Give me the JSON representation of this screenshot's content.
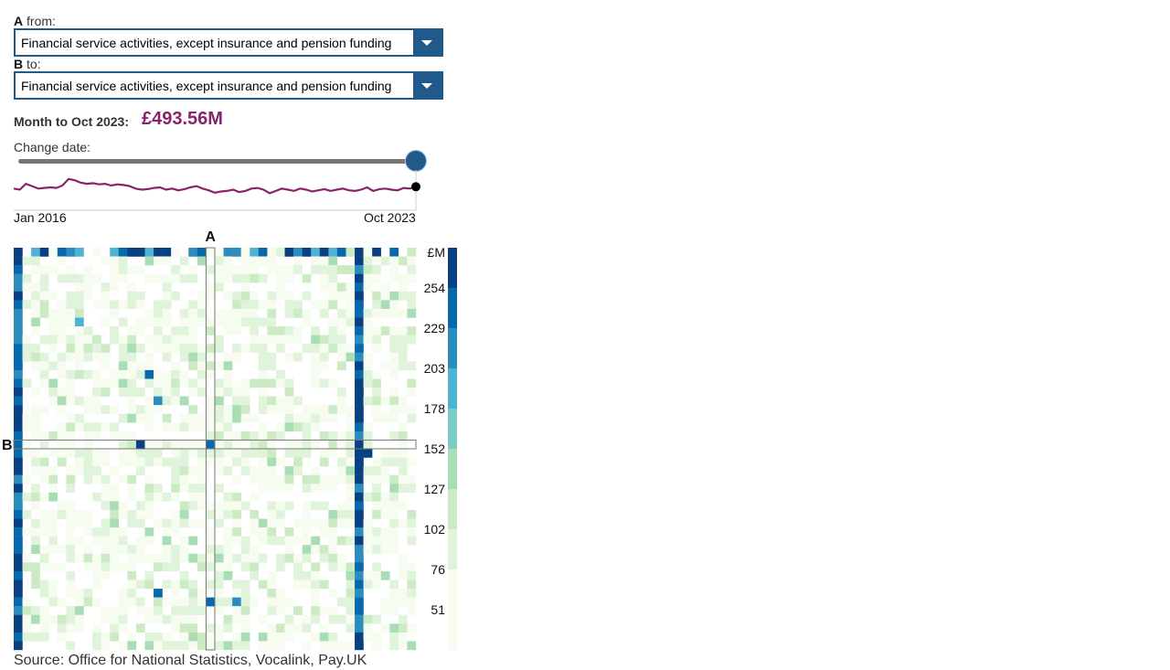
{
  "controls": {
    "a_prefix": "A",
    "a_suffix": "from:",
    "a_value": "Financial service activities, except insurance and pension funding",
    "b_prefix": "B",
    "b_suffix": "to:",
    "b_value": "Financial service activities, except insurance and pension funding",
    "dropdown_icon": "chevron-down-icon"
  },
  "summary": {
    "month_label": "Month to Oct 2023:",
    "month_value": "£493.56M"
  },
  "slider": {
    "label": "Change date:",
    "start_label": "Jan 2016",
    "end_label": "Oct 2023",
    "position_fraction": 1.0
  },
  "source": "Source: Office for National Statistics, Vocalink, Pay.UK",
  "colors": {
    "accent": "#87246b",
    "control_blue": "#1f5a8a",
    "scale": [
      "#f7fcf0",
      "#e0f3db",
      "#ccebc5",
      "#a8ddb5",
      "#7bccc4",
      "#4eb3d3",
      "#2b8cbe",
      "#0868ac",
      "#084081"
    ]
  },
  "chart_data": [
    {
      "type": "line",
      "x_range": [
        "Jan 2016",
        "Oct 2023"
      ],
      "series": [
        {
          "values": [
            470,
            468,
            478,
            474,
            470,
            471,
            472,
            471,
            475,
            486,
            484,
            480,
            478,
            479,
            477,
            478,
            475,
            477,
            476,
            474,
            470,
            468,
            469,
            471,
            472,
            468,
            470,
            467,
            469,
            472,
            474,
            470,
            467,
            463,
            465,
            466,
            468,
            464,
            466,
            470,
            471,
            468,
            462,
            466,
            470,
            468,
            466,
            470,
            468,
            465,
            467,
            469,
            466,
            468,
            470,
            467,
            466,
            468,
            472,
            466,
            469,
            470,
            468,
            467,
            471,
            470,
            473
          ]
        }
      ],
      "marker_last": true
    },
    {
      "type": "heatmap",
      "row_label": "B",
      "column_label": "A",
      "legend_unit": "£M",
      "legend_ticks": [
        254,
        229,
        203,
        178,
        152,
        127,
        102,
        76,
        51
      ],
      "highlight_column": 22,
      "highlight_row": 22
    }
  ]
}
